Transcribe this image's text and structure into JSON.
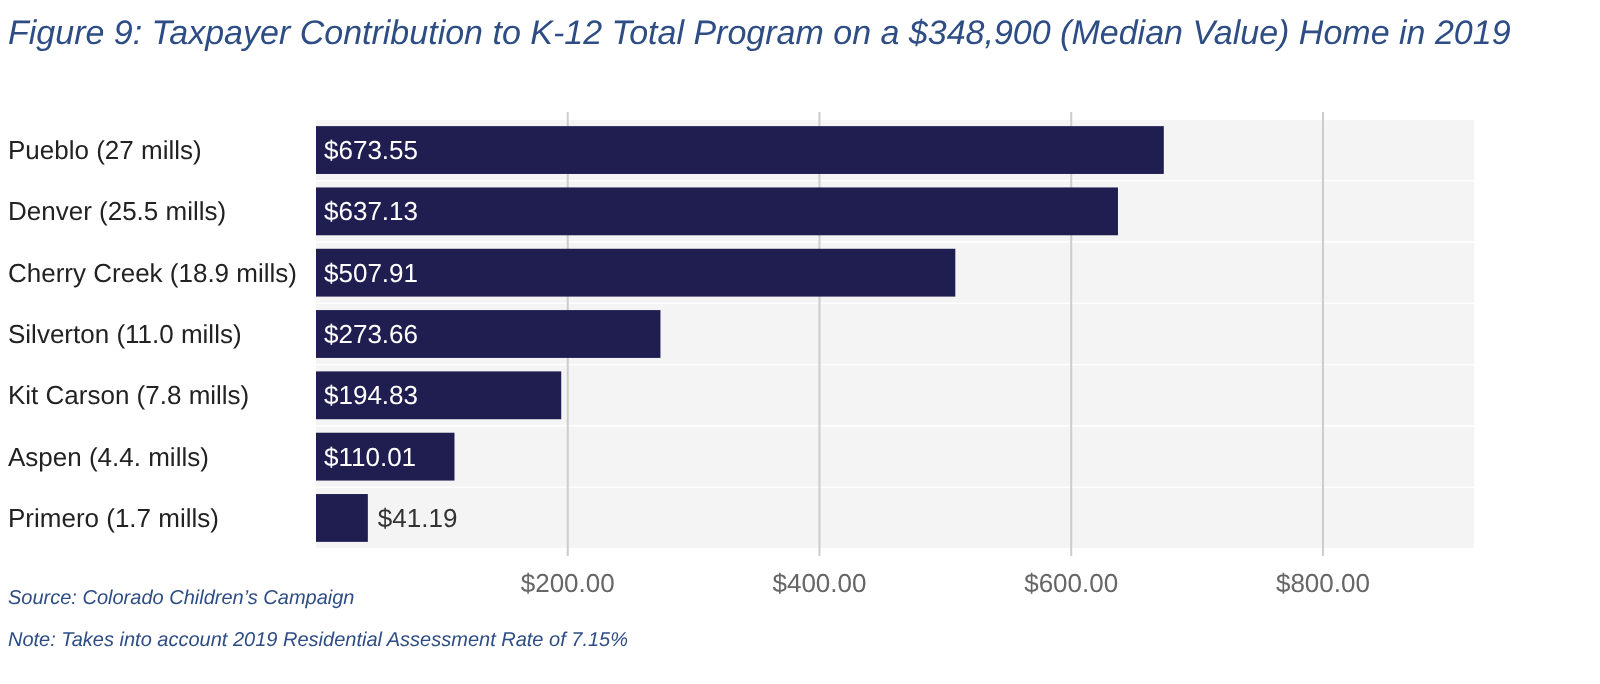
{
  "chart_data": {
    "type": "bar",
    "orientation": "horizontal",
    "title": "Figure 9: Taxpayer Contribution to K-12 Total Program on a $348,900 (Median Value) Home in 2019",
    "categories": [
      "Pueblo (27 mills)",
      "Denver (25.5 mills)",
      "Cherry Creek (18.9 mills)",
      "Silverton (11.0 mills)",
      "Kit Carson (7.8 mills)",
      "Aspen (4.4. mills)",
      "Primero (1.7 mills)"
    ],
    "values": [
      673.55,
      637.13,
      507.91,
      273.66,
      194.83,
      110.01,
      41.19
    ],
    "value_labels": [
      "$673.55",
      "$637.13",
      "$507.91",
      "$273.66",
      "$194.83",
      "$110.01",
      "$41.19"
    ],
    "color": "#201d50",
    "xlim": [
      0,
      920
    ],
    "xticks": [
      {
        "value": 200,
        "label": "$200.00"
      },
      {
        "value": 400,
        "label": "$400.00"
      },
      {
        "value": 600,
        "label": "$600.00"
      },
      {
        "value": 800,
        "label": "$800.00"
      }
    ],
    "grid": "x",
    "annotations": [
      "Source: Colorado Children’s Campaign",
      "Note: Takes into account 2019 Residential Assessment Rate of 7.15%"
    ]
  }
}
